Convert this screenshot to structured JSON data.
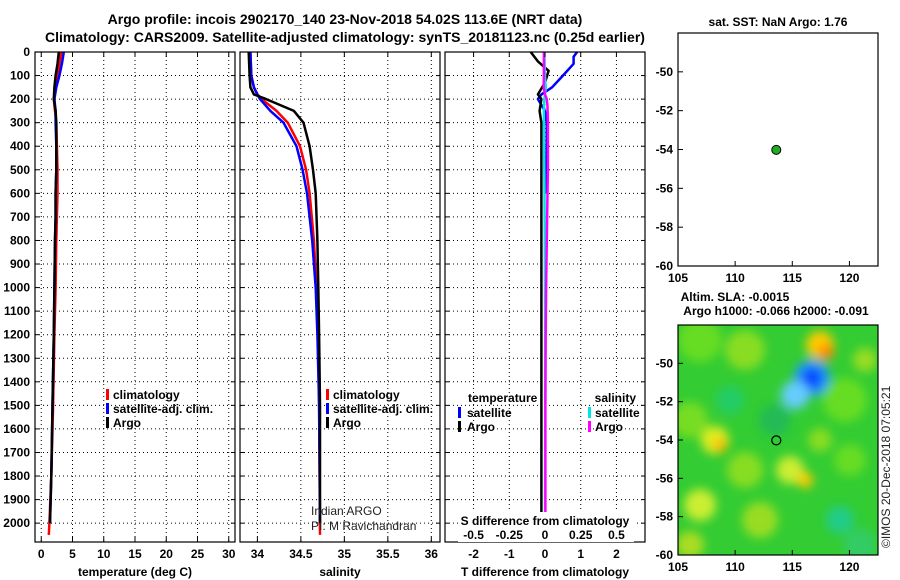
{
  "figure": {
    "title_line1": "Argo profile: incois 2902170_140 23-Nov-2018 54.02S 113.6E (NRT data)",
    "title_line2": "Climatology: CARS2009. Satellite-adjusted climatology: synTS_20181123.nc (0.25d earlier)",
    "watermark": "©IMOS 20-Dec-2018 07:05:21",
    "credit_line1": "Indian ARGO",
    "credit_line2": "PI: M Ravichandran"
  },
  "colors": {
    "climatology": "#ff0000",
    "satellite": "#0000ff",
    "argo": "#000000",
    "s_satellite": "#00e5e5",
    "s_argo": "#ff00ff",
    "marker": "#22aa22"
  },
  "chart_data": [
    {
      "id": "temperature",
      "type": "line",
      "xlabel": "temperature (deg C)",
      "ylabel": "",
      "xlim": [
        -1,
        31
      ],
      "ylim": [
        2080,
        0
      ],
      "xticks": [
        0,
        5,
        10,
        15,
        20,
        25,
        30
      ],
      "xticklabels": [
        "0",
        "5",
        "10",
        "15",
        "20",
        "25",
        "30"
      ],
      "yticks": [
        0,
        100,
        200,
        300,
        400,
        500,
        600,
        700,
        800,
        900,
        1000,
        1100,
        1200,
        1300,
        1400,
        1500,
        1600,
        1700,
        1800,
        1900,
        2000
      ],
      "yticklabels": [
        "0",
        "100",
        "200",
        "300",
        "400",
        "500",
        "600",
        "700",
        "800",
        "900",
        "1000",
        "1100",
        "1200",
        "1300",
        "1400",
        "1500",
        "1600",
        "1700",
        "1800",
        "1900",
        "2000"
      ],
      "legend": [
        "climatology",
        "satellite-adj. clim.",
        "Argo"
      ],
      "series": [
        {
          "name": "climatology",
          "color": "#ff0000",
          "depth": [
            0,
            50,
            100,
            150,
            200,
            250,
            300,
            400,
            500,
            600,
            700,
            800,
            1000,
            1200,
            1500,
            1800,
            2000,
            2050
          ],
          "value": [
            3.2,
            2.9,
            2.6,
            2.3,
            2.0,
            2.2,
            2.4,
            2.5,
            2.6,
            2.6,
            2.5,
            2.4,
            2.3,
            2.1,
            1.9,
            1.6,
            1.3,
            1.2
          ]
        },
        {
          "name": "satellite-adj. clim.",
          "color": "#0000ff",
          "depth": [
            0,
            50,
            100,
            150,
            200,
            250,
            300,
            400,
            500,
            600,
            700,
            800,
            1000,
            1200,
            1500,
            1800,
            2000
          ],
          "value": [
            3.6,
            3.3,
            2.9,
            2.4,
            2.1,
            2.3,
            2.3,
            2.4,
            2.4,
            2.3,
            2.3,
            2.2,
            2.1,
            2.0,
            1.8,
            1.6,
            1.4
          ]
        },
        {
          "name": "Argo",
          "color": "#000000",
          "depth": [
            0,
            50,
            100,
            150,
            200,
            250,
            300,
            400,
            500,
            600,
            700,
            800,
            1000,
            1200,
            1500,
            1800,
            2000
          ],
          "value": [
            2.8,
            2.6,
            2.3,
            2.1,
            2.0,
            2.3,
            2.4,
            2.4,
            2.4,
            2.3,
            2.3,
            2.2,
            2.1,
            2.0,
            1.8,
            1.6,
            1.4
          ]
        }
      ]
    },
    {
      "id": "salinity",
      "type": "line",
      "xlabel": "salinity",
      "xlim": [
        33.8,
        36.1
      ],
      "ylim": [
        2080,
        0
      ],
      "xticks": [
        34,
        34.5,
        35,
        35.5,
        36
      ],
      "xticklabels": [
        "34",
        "34.5",
        "35",
        "35.5",
        "36"
      ],
      "legend": [
        "climatology",
        "satellite-adj. clim.",
        "Argo"
      ],
      "series": [
        {
          "name": "climatology",
          "color": "#ff0000",
          "depth": [
            0,
            100,
            150,
            180,
            200,
            250,
            300,
            400,
            500,
            600,
            800,
            1000,
            1200,
            1500,
            2050
          ],
          "value": [
            33.92,
            33.93,
            33.96,
            34.0,
            34.05,
            34.22,
            34.35,
            34.49,
            34.56,
            34.6,
            34.65,
            34.68,
            34.7,
            34.71,
            34.72
          ]
        },
        {
          "name": "satellite-adj. clim.",
          "color": "#0000ff",
          "depth": [
            0,
            100,
            150,
            180,
            200,
            250,
            300,
            400,
            500,
            600,
            800,
            1000,
            1200,
            1500,
            2000
          ],
          "value": [
            33.92,
            33.93,
            33.96,
            34.0,
            34.03,
            34.15,
            34.3,
            34.45,
            34.52,
            34.57,
            34.63,
            34.67,
            34.69,
            34.71,
            34.72
          ]
        },
        {
          "name": "Argo",
          "color": "#000000",
          "depth": [
            0,
            100,
            150,
            180,
            200,
            250,
            300,
            400,
            500,
            600,
            800,
            1000,
            1200,
            1500,
            2000
          ],
          "value": [
            33.9,
            33.91,
            33.92,
            33.96,
            34.1,
            34.42,
            34.53,
            34.6,
            34.64,
            34.67,
            34.69,
            34.7,
            34.71,
            34.72,
            34.72
          ]
        }
      ]
    },
    {
      "id": "difference",
      "type": "line",
      "xlabel": "T difference from climatology",
      "xlabel2": "S difference from climatology",
      "xlim": [
        -2.8,
        2.8
      ],
      "ylim": [
        2080,
        0
      ],
      "xticks": [
        -2,
        -1,
        0,
        1,
        2
      ],
      "xticklabels": [
        "-2",
        "-1",
        "0",
        "1",
        "2"
      ],
      "s_xticklabels": [
        "-0.5",
        "-0.25",
        "0",
        "0.25",
        "0.5"
      ],
      "legend_left_title": "temperature",
      "legend_right_title": "salinity",
      "legend_left": [
        "satellite",
        "Argo"
      ],
      "legend_right": [
        "satellite",
        "Argo"
      ],
      "series": [
        {
          "name": "T satellite",
          "color": "#0000ff",
          "depth": [
            0,
            20,
            50,
            100,
            150,
            180,
            200,
            250,
            300,
            400,
            600
          ],
          "value": [
            0.9,
            0.8,
            0.8,
            0.5,
            0.2,
            -0.1,
            -0.2,
            0.0,
            0.05,
            0.05,
            0.02
          ]
        },
        {
          "name": "T Argo",
          "color": "#000000",
          "depth": [
            0,
            40,
            80,
            130,
            180,
            200,
            250,
            300,
            400,
            600,
            800,
            1000,
            1200,
            1500,
            1800,
            2000
          ],
          "value": [
            -0.4,
            -0.2,
            0.1,
            0.0,
            -0.2,
            -0.1,
            -0.15,
            -0.1,
            -0.1,
            -0.1,
            -0.1,
            -0.1,
            -0.1,
            -0.1,
            -0.1,
            -0.1
          ]
        },
        {
          "name": "S satellite",
          "color": "#00e5e5",
          "depth": [
            0,
            100,
            150,
            180,
            200,
            250,
            300,
            400,
            600,
            800,
            1000,
            1200,
            1500,
            2000
          ],
          "value": [
            -0.02,
            0.0,
            0.02,
            0.0,
            -0.02,
            -0.03,
            -0.03,
            -0.025,
            -0.015,
            -0.005,
            0.0,
            0.005,
            0.005,
            0.0
          ]
        },
        {
          "name": "S Argo",
          "color": "#ff00ff",
          "depth": [
            0,
            100,
            150,
            180,
            200,
            230,
            300,
            400,
            500,
            600,
            800,
            1000,
            1200,
            1500,
            2000
          ],
          "value": [
            -0.03,
            -0.03,
            -0.04,
            0.0,
            0.05,
            0.07,
            0.08,
            0.08,
            0.08,
            0.07,
            0.05,
            0.03,
            0.02,
            0.01,
            0.01
          ]
        }
      ]
    },
    {
      "id": "sst-map",
      "type": "scatter",
      "title": "sat. SST: NaN Argo: 1.76",
      "xlim": [
        105,
        122.5
      ],
      "ylim": [
        -60,
        -48
      ],
      "xticks": [
        105,
        110,
        115,
        120
      ],
      "xticklabels": [
        "105",
        "110",
        "115",
        "120"
      ],
      "yticks": [
        -50,
        -52,
        -54,
        -56,
        -58,
        -60
      ],
      "yticklabels": [
        "-50",
        "-52",
        "-54",
        "-56",
        "-58",
        "-60"
      ],
      "points": [
        {
          "lon": 113.6,
          "lat": -54.02
        }
      ]
    },
    {
      "id": "sla-map",
      "type": "heatmap",
      "title_line1": "Altim. SLA: -0.0015",
      "title_line2": "Argo h1000: -0.066 h2000: -0.091",
      "xlim": [
        105,
        122.5
      ],
      "ylim": [
        -60,
        -48
      ],
      "xticks": [
        105,
        110,
        115,
        120
      ],
      "xticklabels": [
        "105",
        "110",
        "115",
        "120"
      ],
      "yticks": [
        -50,
        -52,
        -54,
        -56,
        -58,
        -60
      ],
      "yticklabels": [
        "-50",
        "-52",
        "-54",
        "-56",
        "-58",
        "-60"
      ],
      "points": [
        {
          "lon": 113.6,
          "lat": -54.02
        }
      ]
    }
  ]
}
